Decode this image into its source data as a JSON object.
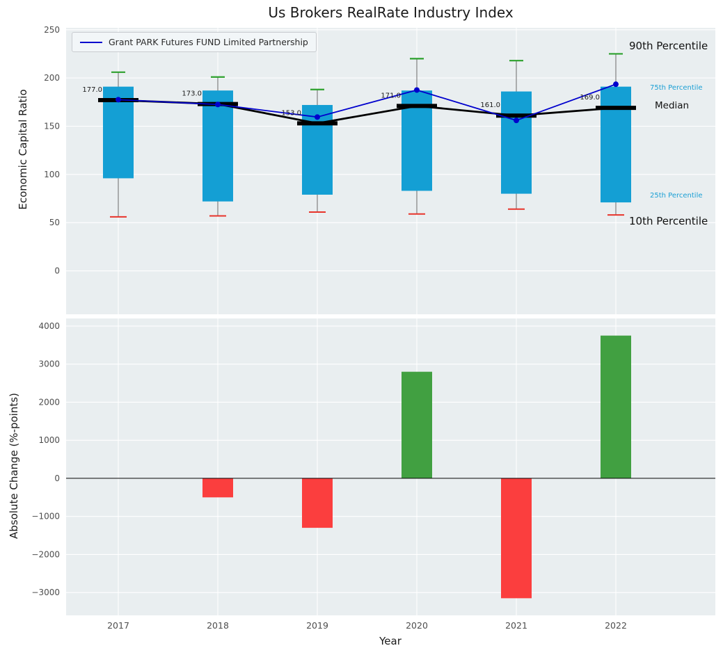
{
  "ui": {
    "title": "Us Brokers RealRate Industry Index",
    "legend_label": "Grant PARK Futures FUND Limited Partnership",
    "ylabel_top": "Economic Capital Ratio",
    "ylabel_bottom": "Absolute Change (%-points)",
    "xlabel": "Year",
    "annotations": {
      "p90": "90th Percentile",
      "p75": "75th Percentile",
      "median": "Median",
      "p25": "25th Percentile",
      "p10": "10th Percentile"
    }
  },
  "colors": {
    "figure_bg": "#ffffff",
    "plot_bg": "#e9eef0",
    "grid": "#ffffff",
    "box_fill": "#149fd4",
    "cap_90": "#2ca02c",
    "cap_10": "#e8332a",
    "median_line": "#000000",
    "company_line": "#0000cd",
    "bar_positive": "#41a041",
    "bar_negative": "#fb3e3e",
    "percentile_label_cyan": "#1a9fd4",
    "tick_text": "#4d4d4d",
    "whisker": "#808080",
    "zero_line": "#000000"
  },
  "chart_data": [
    {
      "type": "box-line",
      "title": "Us Brokers RealRate Industry Index",
      "ylabel": "Economic Capital Ratio",
      "ylim": [
        -45,
        252
      ],
      "yticks": [
        0,
        50,
        100,
        150,
        200,
        250
      ],
      "grid": true,
      "legend_position": "upper left",
      "legend_label": "Grant PARK Futures FUND Limited Partnership",
      "categories": [
        "2017",
        "2018",
        "2019",
        "2020",
        "2021",
        "2022"
      ],
      "series": [
        {
          "name": "90th Percentile",
          "values": [
            206,
            201,
            188,
            220,
            218,
            225
          ]
        },
        {
          "name": "75th Percentile",
          "values": [
            191,
            187,
            172,
            187,
            186,
            191
          ]
        },
        {
          "name": "Median",
          "values": [
            177,
            173,
            153,
            171,
            161,
            169
          ]
        },
        {
          "name": "25th Percentile",
          "values": [
            96,
            72,
            79,
            83,
            80,
            71
          ]
        },
        {
          "name": "10th Percentile",
          "values": [
            56,
            57,
            61,
            59,
            64,
            58
          ]
        },
        {
          "name": "Grant PARK Futures FUND Limited Partnership",
          "values": [
            177.5,
            172.5,
            159.5,
            187.5,
            156,
            193.5
          ]
        }
      ],
      "median_labels": [
        "177.0",
        "173.0",
        "153.0",
        "171.0",
        "161.0",
        "169.0"
      ]
    },
    {
      "type": "bar",
      "xlabel": "Year",
      "ylabel": "Absolute Change (%-points)",
      "ylim": [
        -3600,
        4200
      ],
      "yticks": [
        -3000,
        -2000,
        -1000,
        0,
        1000,
        2000,
        3000,
        4000
      ],
      "grid": true,
      "categories": [
        "2017",
        "2018",
        "2019",
        "2020",
        "2021",
        "2022"
      ],
      "values": [
        0,
        -500,
        -1300,
        2800,
        -3150,
        3750
      ]
    }
  ]
}
